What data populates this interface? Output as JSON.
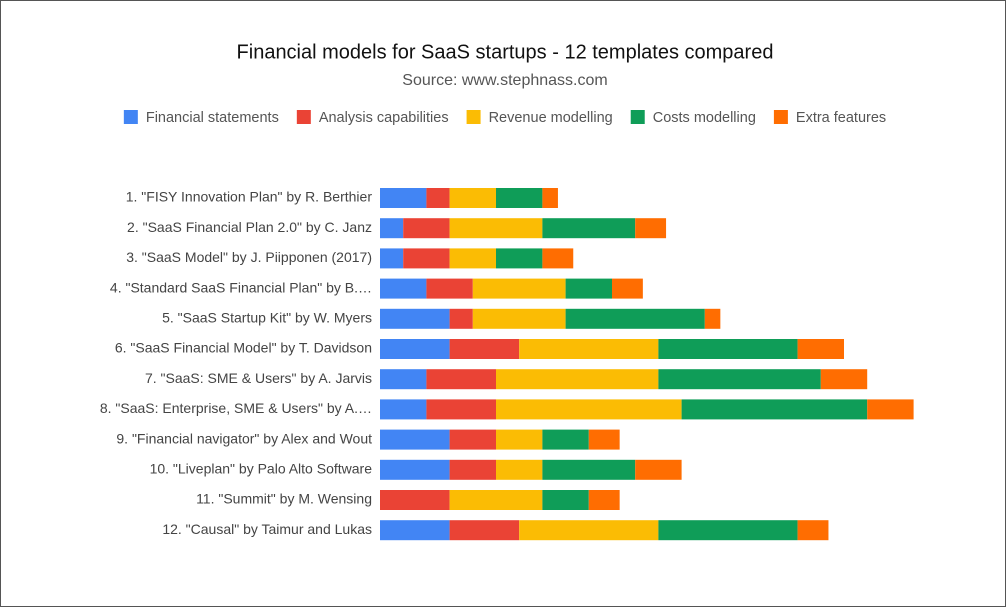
{
  "chart_data": {
    "type": "bar",
    "orientation": "horizontal",
    "stacked": true,
    "legend": "top",
    "title": "Financial models for SaaS startups - 12 templates compared",
    "subtitle": "Source: www.stephnass.com",
    "categories": [
      "1. \"FISY Innovation Plan\" by R. Berthier",
      "2. \"SaaS Financial Plan 2.0\" by C. Janz",
      "3. \"SaaS Model\" by J. Piipponen (2017)",
      "4. \"Standard SaaS Financial Plan\" by B.…",
      "5. \"SaaS Startup Kit\" by W. Myers",
      "6. \"SaaS Financial Model\" by T. Davidson",
      "7. \"SaaS: SME & Users\" by A. Jarvis",
      "8. \"SaaS: Enterprise, SME & Users\" by A.…",
      "9. \"Financial navigator\" by Alex and Wout",
      "10. \"Liveplan\" by Palo Alto Software",
      "11. \"Summit\" by M. Wensing",
      "12. \"Causal\" by Taimur and Lukas"
    ],
    "series": [
      {
        "name": "Financial statements",
        "color": "#4285f4",
        "values": [
          2,
          1,
          1,
          2,
          3,
          3,
          2,
          2,
          3,
          3,
          0,
          3
        ]
      },
      {
        "name": "Analysis capabilities",
        "color": "#ea4335",
        "values": [
          1,
          2,
          2,
          2,
          1,
          3,
          3,
          3,
          2,
          2,
          3,
          3
        ]
      },
      {
        "name": "Revenue modelling",
        "color": "#fbbc04",
        "values": [
          2,
          4,
          2,
          4,
          4,
          6,
          7,
          8,
          2,
          2,
          4,
          6
        ]
      },
      {
        "name": "Costs modelling",
        "color": "#0f9d58",
        "values": [
          2,
          4,
          2,
          2,
          6,
          6,
          7,
          8,
          2,
          4,
          2,
          6
        ]
      },
      {
        "name": "Extra features",
        "color": "#ff6d01",
        "values": [
          0.67,
          1.33,
          1.33,
          1.33,
          0.67,
          2,
          2,
          2,
          1.33,
          2,
          1.33,
          1.33
        ]
      }
    ],
    "xlim": [
      0,
      23
    ]
  }
}
